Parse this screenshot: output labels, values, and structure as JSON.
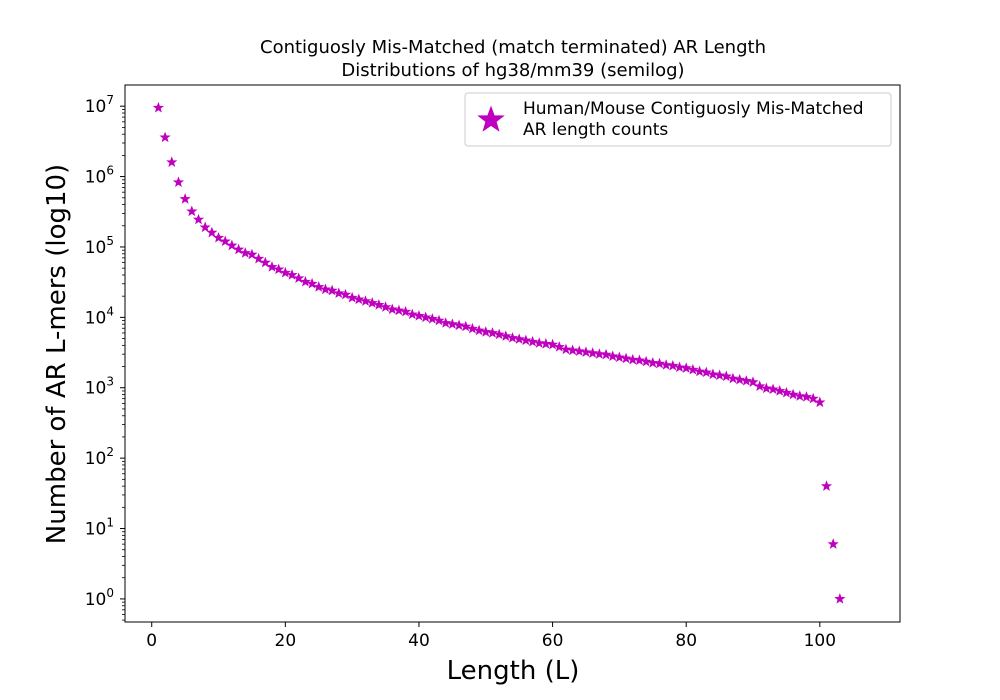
{
  "chart_data": {
    "type": "scatter",
    "title": "Contiguosly Mis-Matched (match terminated) AR Length",
    "subtitle": "Distributions of hg38/mm39 (semilog)",
    "xlabel": "Length (L)",
    "ylabel": "Number of AR L-mers (log10)",
    "xlim": [
      -4,
      112
    ],
    "ylim": [
      0.47,
      20000000
    ],
    "yscale": "log",
    "x_ticks": [
      0,
      20,
      40,
      60,
      80,
      100
    ],
    "x_tick_labels": [
      "0",
      "20",
      "40",
      "60",
      "80",
      "100"
    ],
    "y_ticks": [
      1,
      10,
      100,
      1000,
      10000,
      100000,
      1000000,
      10000000
    ],
    "y_tick_labels": [
      "10^0",
      "10^1",
      "10^2",
      "10^3",
      "10^4",
      "10^5",
      "10^6",
      "10^7"
    ],
    "grid": false,
    "legend_position": "top-right",
    "marker": "star",
    "color": "#bf00bf",
    "series": [
      {
        "name": "Human/Mouse Contiguosly Mis-Matched\n AR length counts",
        "x": [
          1,
          2,
          3,
          4,
          5,
          6,
          7,
          8,
          9,
          10,
          11,
          12,
          13,
          14,
          15,
          16,
          17,
          18,
          19,
          20,
          21,
          22,
          23,
          24,
          25,
          26,
          27,
          28,
          29,
          30,
          31,
          32,
          33,
          34,
          35,
          36,
          37,
          38,
          39,
          40,
          41,
          42,
          43,
          44,
          45,
          46,
          47,
          48,
          49,
          50,
          51,
          52,
          53,
          54,
          55,
          56,
          57,
          58,
          59,
          60,
          61,
          62,
          63,
          64,
          65,
          66,
          67,
          68,
          69,
          70,
          71,
          72,
          73,
          74,
          75,
          76,
          77,
          78,
          79,
          80,
          81,
          82,
          83,
          84,
          85,
          86,
          87,
          88,
          89,
          90,
          91,
          92,
          93,
          94,
          95,
          96,
          97,
          98,
          99,
          100,
          101,
          102,
          103
        ],
        "y": [
          9500000,
          3600000,
          1600000,
          830000,
          480000,
          320000,
          245000,
          190000,
          160000,
          135000,
          120000,
          105000,
          92000,
          82000,
          78000,
          68000,
          60000,
          52000,
          48000,
          43000,
          40000,
          36000,
          32000,
          30000,
          27000,
          25000,
          24000,
          22000,
          21000,
          19000,
          18000,
          17000,
          16000,
          15000,
          14000,
          13000,
          12500,
          12000,
          11000,
          10500,
          10000,
          9500,
          9000,
          8300,
          8000,
          7700,
          7400,
          6900,
          6500,
          6200,
          6000,
          5700,
          5400,
          5100,
          4900,
          4700,
          4500,
          4300,
          4200,
          4100,
          3800,
          3500,
          3400,
          3300,
          3200,
          3100,
          3000,
          2950,
          2800,
          2700,
          2600,
          2500,
          2450,
          2350,
          2250,
          2200,
          2100,
          2050,
          1950,
          1900,
          1800,
          1700,
          1650,
          1550,
          1500,
          1450,
          1350,
          1300,
          1250,
          1200,
          1050,
          980,
          950,
          900,
          850,
          800,
          760,
          740,
          700,
          620,
          40,
          6,
          1
        ]
      }
    ]
  }
}
